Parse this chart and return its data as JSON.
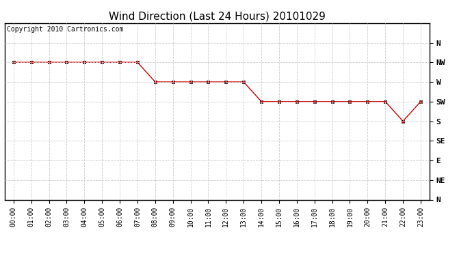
{
  "title": "Wind Direction (Last 24 Hours) 20101029",
  "copyright_text": "Copyright 2010 Cartronics.com",
  "x_labels": [
    "00:00",
    "01:00",
    "02:00",
    "03:00",
    "04:00",
    "05:00",
    "06:00",
    "07:00",
    "08:00",
    "09:00",
    "10:00",
    "11:00",
    "12:00",
    "13:00",
    "14:00",
    "15:00",
    "16:00",
    "17:00",
    "18:00",
    "19:00",
    "20:00",
    "21:00",
    "22:00",
    "23:00"
  ],
  "y_values": [
    315,
    315,
    315,
    315,
    315,
    315,
    315,
    315,
    270,
    270,
    270,
    270,
    270,
    270,
    225,
    225,
    225,
    225,
    225,
    225,
    225,
    225,
    180,
    225
  ],
  "y_ticks": [
    360,
    315,
    270,
    225,
    180,
    135,
    90,
    45,
    0
  ],
  "y_tick_labels": [
    "N",
    "NW",
    "W",
    "SW",
    "S",
    "SE",
    "E",
    "NE",
    "N"
  ],
  "line_color": "#cc0000",
  "marker": "s",
  "marker_color": "#cc0000",
  "marker_size": 3,
  "background_color": "#ffffff",
  "grid_color": "#cccccc",
  "title_fontsize": 11,
  "copyright_fontsize": 7,
  "tick_fontsize": 7,
  "ytick_fontsize": 8
}
